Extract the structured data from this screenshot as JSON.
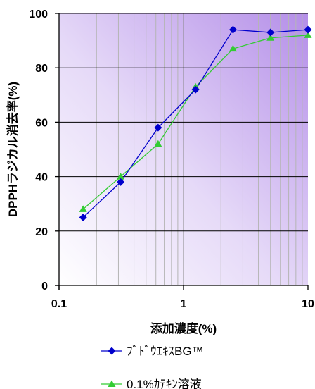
{
  "chart_data": {
    "type": "line",
    "x_scale": "log",
    "xlim": [
      0.1,
      10
    ],
    "ylim": [
      0,
      100
    ],
    "x_ticks": [
      "0.1",
      "1",
      "10"
    ],
    "y_ticks": [
      "0",
      "20",
      "40",
      "60",
      "80",
      "100"
    ],
    "xlabel": "添加濃度(%)",
    "ylabel": "DPPHラジカル消去率(%)",
    "grid": true,
    "legend_position": "bottom",
    "series": [
      {
        "name": "ﾌﾞﾄﾞｳｴｷｽBG™",
        "color": "#0000cc",
        "marker": "diamond",
        "x": [
          0.156,
          0.3125,
          0.625,
          1.25,
          2.5,
          5,
          10
        ],
        "y": [
          25,
          38,
          58,
          72,
          94,
          93,
          94
        ]
      },
      {
        "name": "0.1%ｶﾃｷﾝ溶液",
        "color": "#33cc33",
        "marker": "triangle",
        "x": [
          0.156,
          0.3125,
          0.625,
          1.25,
          2.5,
          5,
          10
        ],
        "y": [
          28,
          40,
          52,
          73,
          87,
          91,
          92
        ]
      }
    ]
  }
}
